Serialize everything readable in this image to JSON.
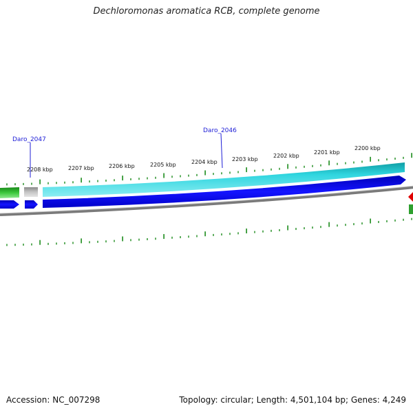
{
  "title": "Dechloromonas aromatica RCB, complete genome",
  "footer": {
    "accession": "Accession: NC_007298",
    "summary": "Topology: circular; Length: 4,501,104 bp; Genes: 4,249"
  },
  "ticks": [
    "2208 kbp",
    "2207 kbp",
    "2206 kbp",
    "2205 kbp",
    "2204 kbp",
    "2203 kbp",
    "2202 kbp",
    "2201 kbp",
    "2200 kbp"
  ],
  "genes": [
    {
      "label": "Daro_2047"
    },
    {
      "label": "Daro_2046"
    }
  ],
  "colors": {
    "forward_gene": "#22c7d2",
    "reverse_gene": "#0a0ae6",
    "backbone": "#808080",
    "tick": "#1a8a1a",
    "selected": "#aaaaaa",
    "rna": "#e00000"
  }
}
